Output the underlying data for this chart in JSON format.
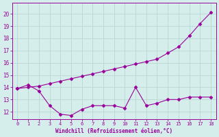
{
  "line1_x": [
    0,
    1,
    2,
    3,
    4,
    5,
    6,
    7,
    8,
    9,
    10,
    11,
    12,
    13,
    14,
    15,
    16,
    17,
    18
  ],
  "line1_y": [
    13.9,
    14.0,
    14.1,
    14.3,
    14.5,
    14.7,
    14.9,
    15.1,
    15.3,
    15.5,
    15.7,
    15.9,
    16.1,
    16.3,
    16.8,
    17.3,
    18.2,
    19.2,
    20.1
  ],
  "line2_x": [
    0,
    1,
    2,
    3,
    4,
    5,
    6,
    7,
    8,
    9,
    10,
    11,
    12,
    13,
    14,
    15,
    16,
    17,
    18
  ],
  "line2_y": [
    13.9,
    14.2,
    13.7,
    12.5,
    11.8,
    11.7,
    12.2,
    12.5,
    12.5,
    12.5,
    12.3,
    14.0,
    12.5,
    12.7,
    13.0,
    13.0,
    13.2,
    13.2,
    13.2
  ],
  "line_color": "#990099",
  "bg_color": "#d5eeeb",
  "grid_color": "#b8d8d5",
  "xlabel": "Windchill (Refroidissement éolien,°C)",
  "xlabel_color": "#990099",
  "yticks": [
    12,
    13,
    14,
    15,
    16,
    17,
    18,
    19,
    20
  ],
  "ylim": [
    11.4,
    20.9
  ],
  "xlim": [
    -0.5,
    18.5
  ],
  "marker": "D",
  "markersize": 2.5
}
